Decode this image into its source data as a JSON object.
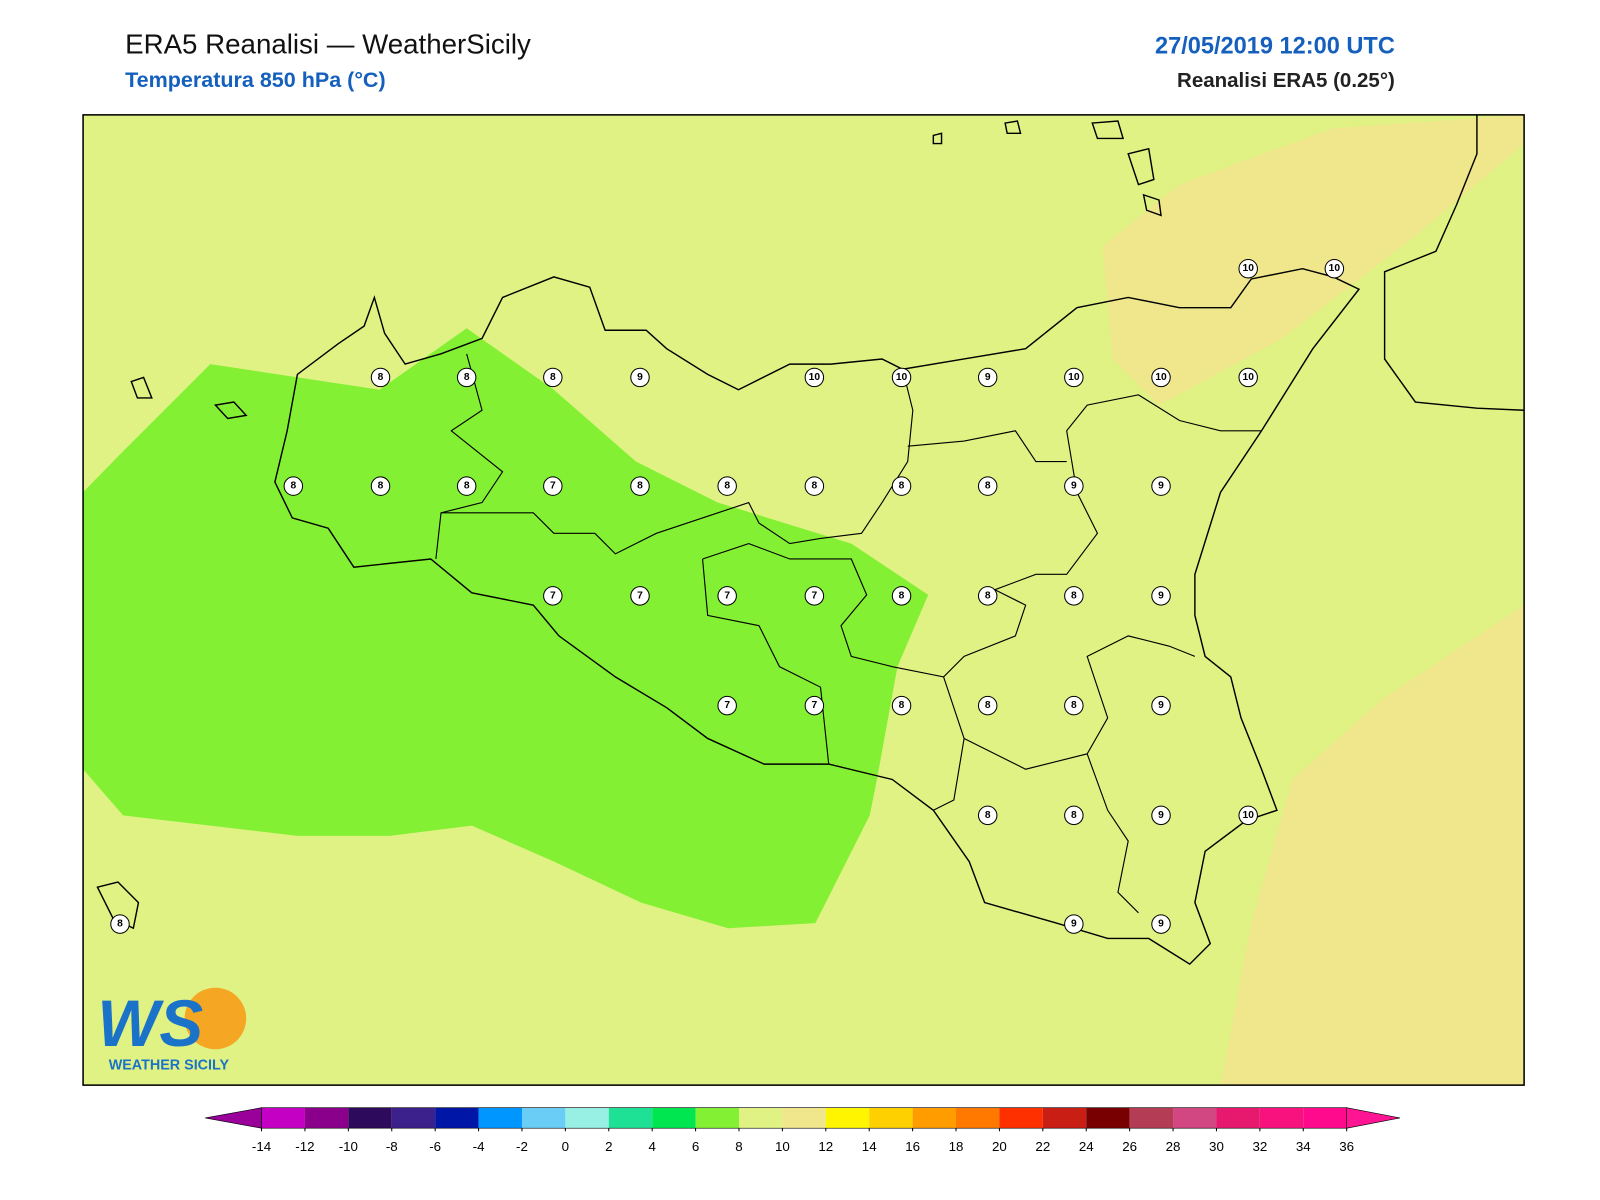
{
  "header": {
    "title": "ERA5 Reanalisi — WeatherSicily",
    "subtitle": "Temperatura 850 hPa (°C)",
    "date": "27/05/2019 12:00 UTC",
    "source": "Reanalisi ERA5 (0.25°)"
  },
  "stations": [
    10,
    10,
    8,
    8,
    8,
    9,
    10,
    10,
    9,
    10,
    10,
    10,
    8,
    8,
    8,
    7,
    8,
    8,
    8,
    8,
    8,
    9,
    9,
    7,
    7,
    7,
    7,
    8,
    8,
    8,
    9,
    7,
    7,
    8,
    8,
    8,
    9,
    8,
    8,
    9,
    10,
    9,
    9,
    8
  ],
  "colorbar": {
    "ticks": [
      -14,
      -12,
      -10,
      -8,
      -6,
      -4,
      -2,
      0,
      2,
      4,
      6,
      8,
      10,
      12,
      14,
      16,
      18,
      20,
      22,
      24,
      26,
      28,
      30,
      32,
      34,
      36
    ],
    "colors": [
      "#c400c4",
      "#8a008a",
      "#2e0a5c",
      "#3c208c",
      "#0016a6",
      "#0096ff",
      "#6acdf6",
      "#98f0e4",
      "#1ee196",
      "#00e650",
      "#84f034",
      "#e0f284",
      "#f0e68c",
      "#fff500",
      "#ffd000",
      "#ff9c00",
      "#ff7800",
      "#ff3000",
      "#c81e14",
      "#780000",
      "#b43c55",
      "#d24682",
      "#e6196e",
      "#f8127e",
      "#ff0a8c"
    ],
    "under_color": "#9a009a",
    "over_color": "#ff1493"
  },
  "logo": {
    "mark": "WS",
    "text": "WEATHER SICILY"
  }
}
